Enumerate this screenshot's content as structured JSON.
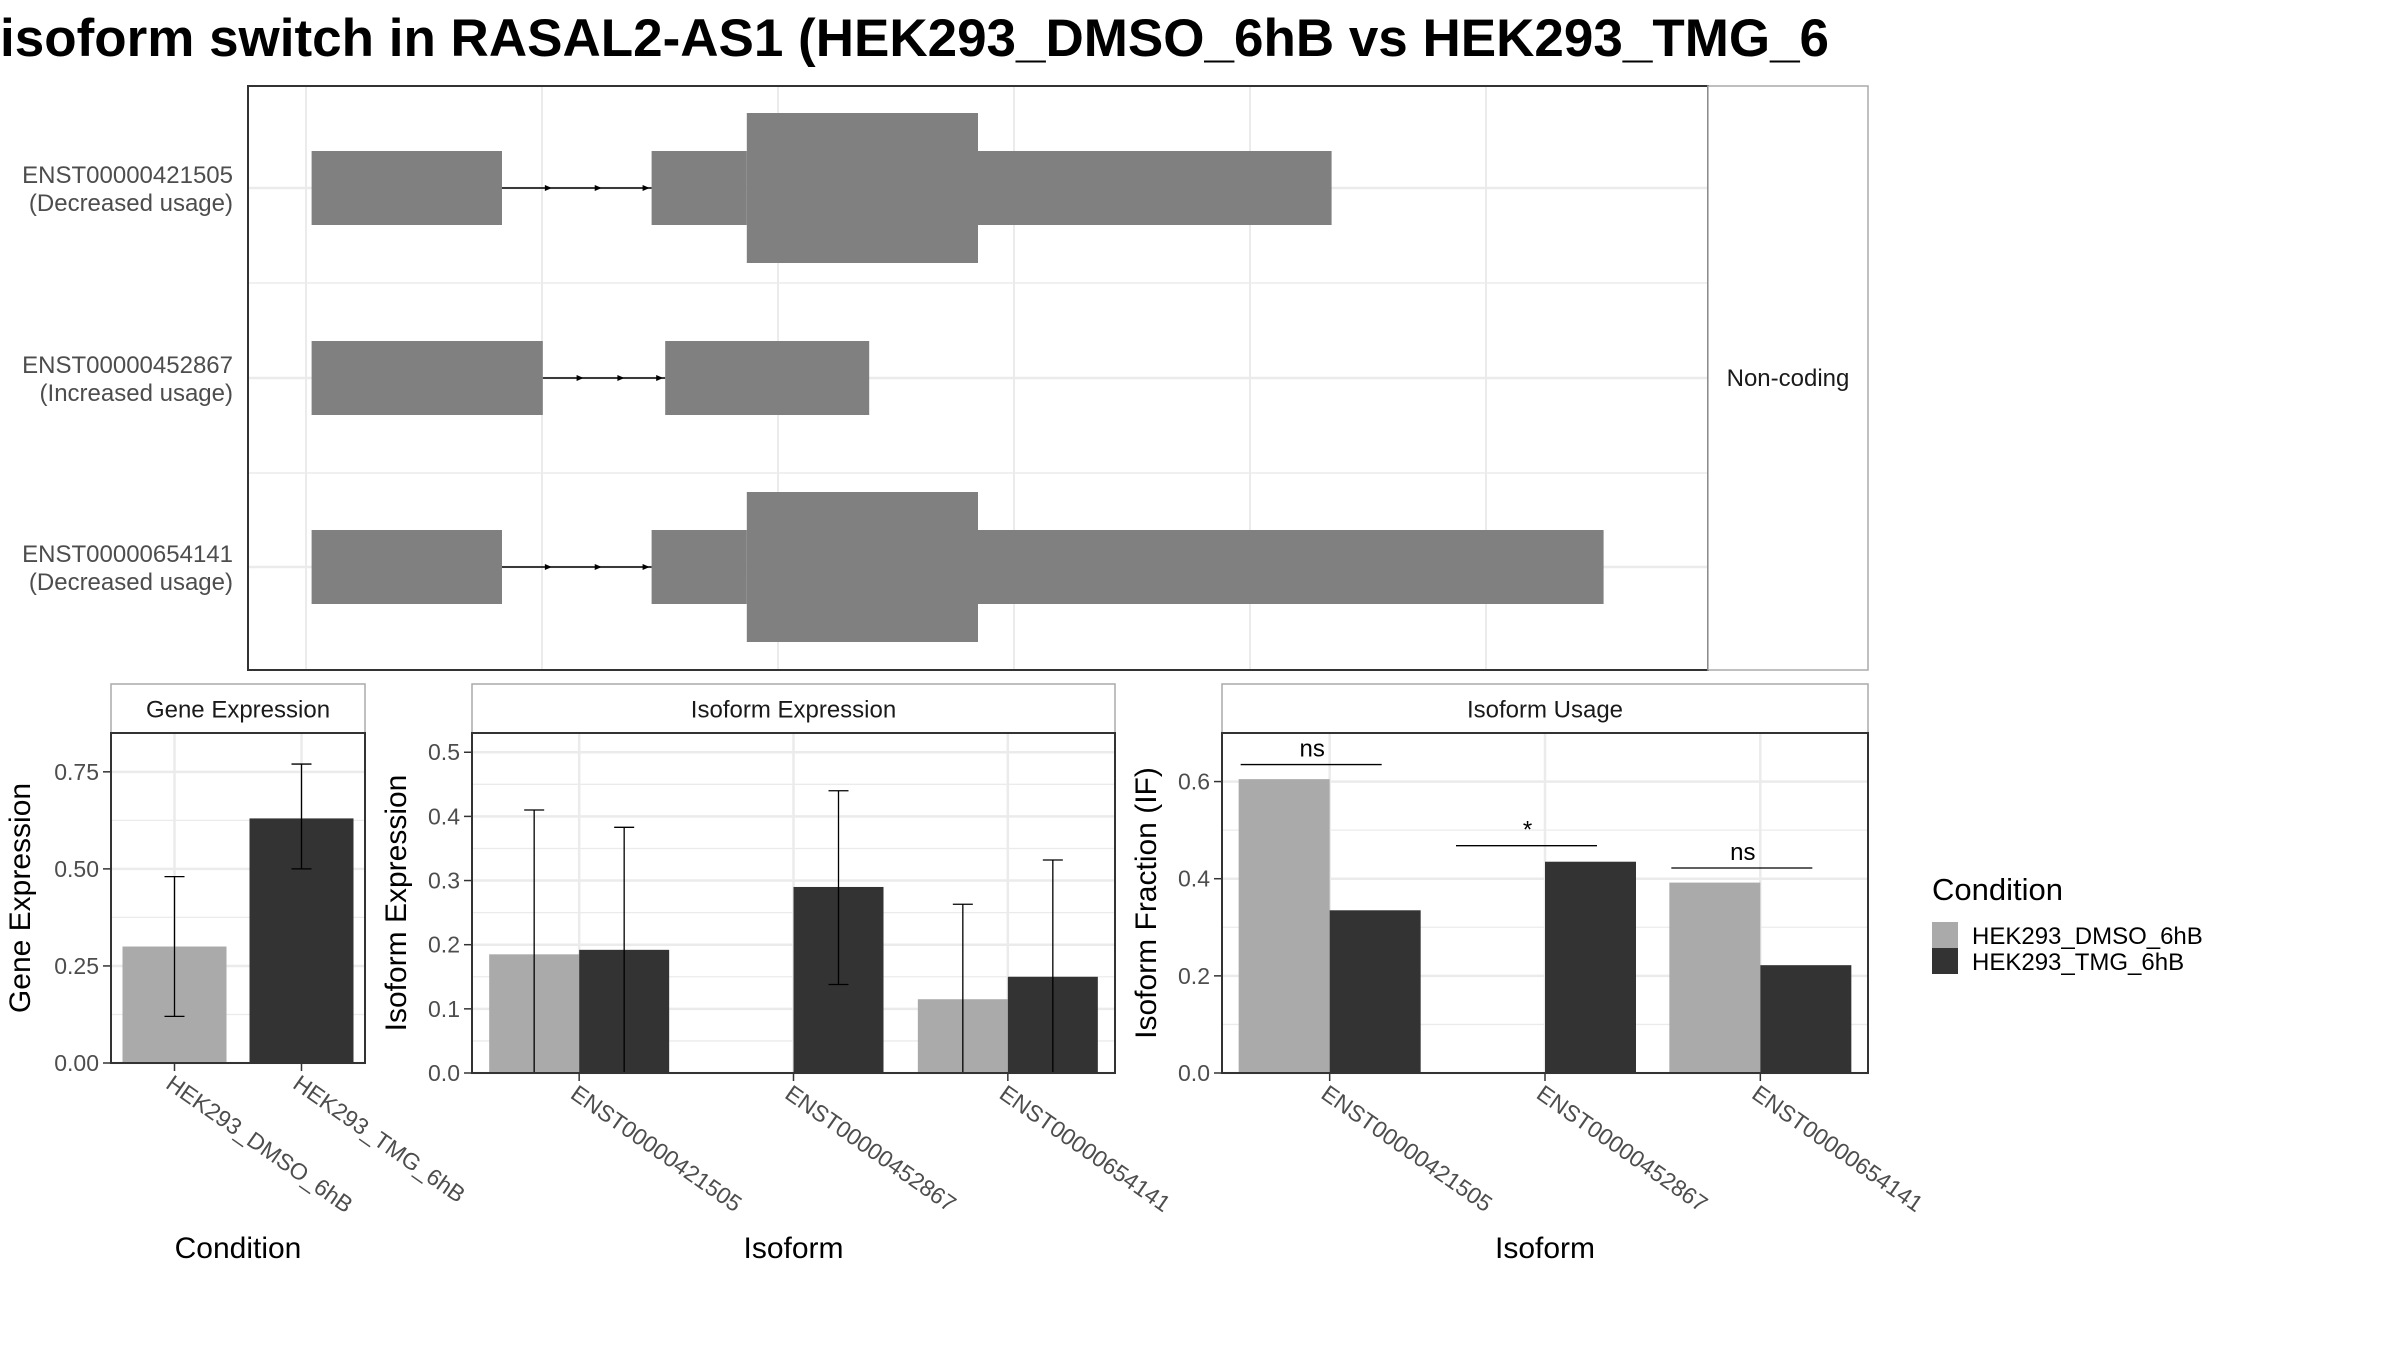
{
  "title": "isoform switch in RASAL2-AS1 (HEK293_DMSO_6hB vs HEK293_TMG_6",
  "colors": {
    "structure": "#808080",
    "dmso": "#aaaaaa",
    "tmg": "#333333",
    "grid": "#ebebeb",
    "panel_border": "#333333",
    "strip_border": "#aaaaaa"
  },
  "chart_data": [
    {
      "type": "other",
      "name": "transcript_structure",
      "facet_label": "Non-coding",
      "genomic_axis": [
        0,
        100
      ],
      "transcripts": [
        {
          "id": "ENST00000421505",
          "status": "(Decreased usage)",
          "exons": [
            {
              "start": 1,
              "end": 15,
              "kind": "utr"
            },
            {
              "start": 26,
              "end": 33,
              "kind": "utr"
            },
            {
              "start": 33,
              "end": 50,
              "kind": "cds"
            },
            {
              "start": 50,
              "end": 76,
              "kind": "utr"
            }
          ],
          "introns": [
            [
              15,
              26
            ]
          ]
        },
        {
          "id": "ENST00000452867",
          "status": "(Increased usage)",
          "exons": [
            {
              "start": 1,
              "end": 18,
              "kind": "utr"
            },
            {
              "start": 27,
              "end": 42,
              "kind": "utr"
            }
          ],
          "introns": [
            [
              18,
              27
            ]
          ]
        },
        {
          "id": "ENST00000654141",
          "status": "(Decreased usage)",
          "exons": [
            {
              "start": 1,
              "end": 15,
              "kind": "utr"
            },
            {
              "start": 26,
              "end": 33,
              "kind": "utr"
            },
            {
              "start": 33,
              "end": 50,
              "kind": "cds"
            },
            {
              "start": 50,
              "end": 96,
              "kind": "utr"
            }
          ],
          "introns": [
            [
              15,
              26
            ]
          ]
        }
      ]
    },
    {
      "type": "bar",
      "name": "gene_expression",
      "strip_title": "Gene Expression",
      "xlabel": "Condition",
      "ylabel": "Gene Expression",
      "ylim": [
        0,
        0.85
      ],
      "yticks": [
        0.0,
        0.25,
        0.5,
        0.75
      ],
      "ytick_labels": [
        "0.00",
        "0.25",
        "0.50",
        "0.75"
      ],
      "categories": [
        "HEK293_DMSO_6hB",
        "HEK293_TMG_6hB"
      ],
      "values": [
        0.3,
        0.63
      ],
      "errors_low": [
        0.12,
        0.5
      ],
      "errors_high": [
        0.48,
        0.77
      ]
    },
    {
      "type": "bar",
      "name": "isoform_expression",
      "strip_title": "Isoform Expression",
      "xlabel": "Isoform",
      "ylabel": "Isoform Expression",
      "ylim": [
        0,
        0.53
      ],
      "yticks": [
        0.0,
        0.1,
        0.2,
        0.3,
        0.4,
        0.5
      ],
      "ytick_labels": [
        "0.0",
        "0.1",
        "0.2",
        "0.3",
        "0.4",
        "0.5"
      ],
      "categories": [
        "ENST00000421505",
        "ENST00000452867",
        "ENST00000654141"
      ],
      "series": [
        {
          "key": "dmso",
          "values": [
            0.185,
            0.0,
            0.115
          ],
          "errors_low": [
            0.0,
            0.0,
            0.0
          ],
          "errors_high": [
            0.41,
            0.0,
            0.263
          ]
        },
        {
          "key": "tmg",
          "values": [
            0.192,
            0.29,
            0.15
          ],
          "errors_low": [
            0.0,
            0.138,
            0.0
          ],
          "errors_high": [
            0.383,
            0.44,
            0.332
          ]
        }
      ]
    },
    {
      "type": "bar",
      "name": "isoform_usage",
      "strip_title": "Isoform Usage",
      "xlabel": "Isoform",
      "ylabel": "Isoform Fraction (IF)",
      "ylim": [
        0,
        0.7
      ],
      "yticks": [
        0.0,
        0.2,
        0.4,
        0.6
      ],
      "ytick_labels": [
        "0.0",
        "0.2",
        "0.4",
        "0.6"
      ],
      "categories": [
        "ENST00000421505",
        "ENST00000452867",
        "ENST00000654141"
      ],
      "series": [
        {
          "key": "dmso",
          "values": [
            0.605,
            0.0,
            0.392
          ]
        },
        {
          "key": "tmg",
          "values": [
            0.335,
            0.435,
            0.222
          ]
        }
      ],
      "significance": [
        {
          "category": "ENST00000421505",
          "label": "ns",
          "y": 0.635
        },
        {
          "category": "ENST00000452867",
          "label": "*",
          "y": 0.468
        },
        {
          "category": "ENST00000654141",
          "label": "ns",
          "y": 0.422
        }
      ]
    }
  ],
  "legend": {
    "title": "Condition",
    "position": "right",
    "items": [
      {
        "label": "HEK293_DMSO_6hB",
        "color_key": "dmso"
      },
      {
        "label": "HEK293_TMG_6hB",
        "color_key": "tmg"
      }
    ]
  }
}
